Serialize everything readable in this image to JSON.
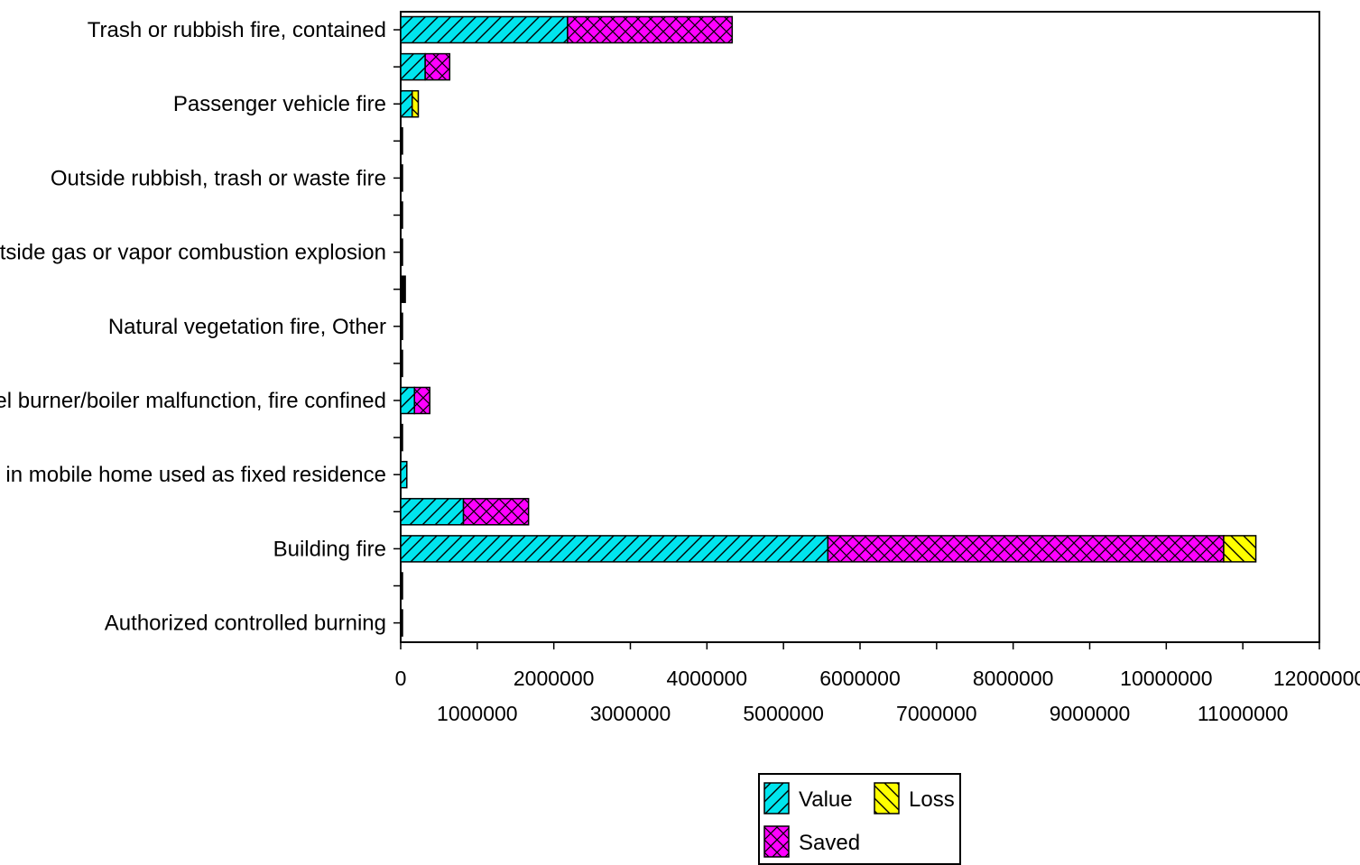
{
  "chart_data": {
    "type": "bar",
    "orientation": "horizontal",
    "stacked": true,
    "categories": [
      "Trash or rubbish fire, contained",
      "",
      "Passenger vehicle fire",
      "",
      "Outside rubbish, trash or waste fire",
      "",
      "Outside gas or vapor combustion explosion",
      "",
      "Natural vegetation fire, Other",
      "",
      "Fuel burner/boiler malfunction, fire confined",
      "",
      "Fire in mobile home used as fixed residence",
      "",
      "Building fire",
      "",
      "Authorized controlled burning"
    ],
    "series": [
      {
        "name": "Value",
        "color": "#00e5ee",
        "pattern": "diagonal-forward",
        "values": [
          2180000,
          320000,
          150000,
          10000,
          10000,
          10000,
          10000,
          60000,
          10000,
          10000,
          180000,
          10000,
          80000,
          820000,
          5580000,
          10000,
          10000
        ]
      },
      {
        "name": "Saved",
        "color": "#ff00ff",
        "pattern": "crosshatch",
        "values": [
          2150000,
          320000,
          0,
          0,
          0,
          0,
          0,
          0,
          0,
          0,
          200000,
          0,
          0,
          850000,
          5170000,
          0,
          0
        ]
      },
      {
        "name": "Loss",
        "color": "#ffff00",
        "pattern": "diagonal-back",
        "values": [
          0,
          0,
          80000,
          0,
          0,
          0,
          0,
          0,
          0,
          0,
          0,
          0,
          0,
          0,
          420000,
          0,
          0
        ]
      }
    ],
    "xlim": [
      0,
      12000000
    ],
    "x_ticks_upper": [
      "0",
      "2000000",
      "4000000",
      "6000000",
      "8000000",
      "10000000",
      "12000000"
    ],
    "x_ticks_lower": [
      "1000000",
      "3000000",
      "5000000",
      "7000000",
      "9000000",
      "11000000"
    ],
    "x_tick_values_upper": [
      0,
      2000000,
      4000000,
      6000000,
      8000000,
      10000000,
      12000000
    ],
    "x_tick_values_lower": [
      1000000,
      3000000,
      5000000,
      7000000,
      9000000,
      11000000
    ],
    "legend": {
      "placement": "bottom-center",
      "entries": [
        {
          "label": "Value",
          "color": "#00e5ee",
          "pattern": "diagonal-forward"
        },
        {
          "label": "Loss",
          "color": "#ffff00",
          "pattern": "diagonal-back"
        },
        {
          "label": "Saved",
          "color": "#ff00ff",
          "pattern": "crosshatch"
        }
      ]
    },
    "grid": false,
    "title": "",
    "xlabel": "",
    "ylabel": ""
  }
}
